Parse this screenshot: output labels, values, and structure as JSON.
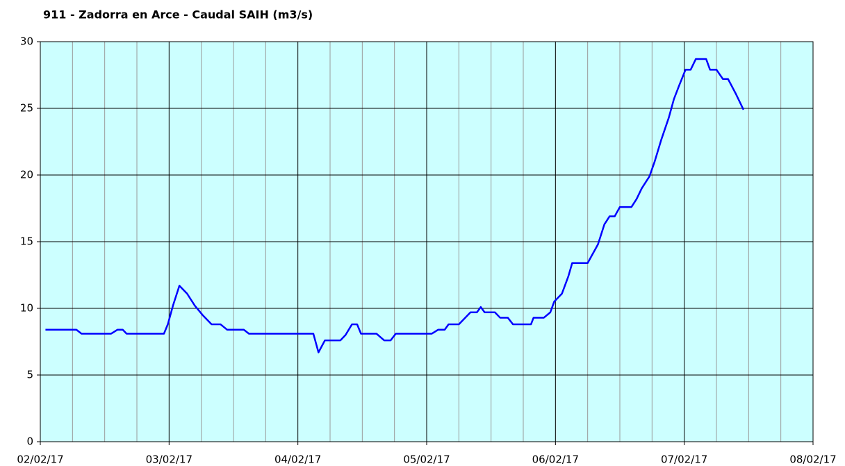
{
  "chart_data": {
    "type": "line",
    "title": "911 - Zadorra en Arce - Caudal SAIH (m3/s)",
    "xlim": [
      0,
      6
    ],
    "xticks": [
      {
        "value": 0,
        "label": "02/02/17"
      },
      {
        "value": 1,
        "label": "03/02/17"
      },
      {
        "value": 2,
        "label": "04/02/17"
      },
      {
        "value": 3,
        "label": "05/02/17"
      },
      {
        "value": 4,
        "label": "06/02/17"
      },
      {
        "value": 5,
        "label": "07/02/17"
      },
      {
        "value": 6,
        "label": "08/02/17"
      }
    ],
    "minor_divisions": 4,
    "ylim": [
      0,
      30
    ],
    "yticks": [
      0,
      5,
      10,
      15,
      20,
      25,
      30
    ],
    "grid": true,
    "background": "#ccffff",
    "series": [
      {
        "color": "#0000ff",
        "x": [
          0.04,
          0.28,
          0.32,
          0.55,
          0.6,
          0.64,
          0.67,
          0.96,
          0.99,
          1.03,
          1.08,
          1.14,
          1.2,
          1.26,
          1.33,
          1.4,
          1.45,
          1.58,
          1.62,
          2.12,
          2.16,
          2.21,
          2.33,
          2.37,
          2.42,
          2.46,
          2.49,
          2.61,
          2.67,
          2.72,
          2.76,
          3.04,
          3.09,
          3.14,
          3.17,
          3.25,
          3.34,
          3.39,
          3.42,
          3.45,
          3.53,
          3.57,
          3.63,
          3.67,
          3.81,
          3.83,
          3.91,
          3.96,
          3.99,
          4.05,
          4.1,
          4.13,
          4.25,
          4.33,
          4.38,
          4.42,
          4.46,
          4.5,
          4.59,
          4.63,
          4.67,
          4.73,
          4.77,
          4.82,
          4.88,
          4.92,
          4.96,
          5.01,
          5.05,
          5.09,
          5.17,
          5.2,
          5.25,
          5.3,
          5.34,
          5.4,
          5.46
        ],
        "values": [
          8.4,
          8.4,
          8.1,
          8.1,
          8.4,
          8.4,
          8.1,
          8.1,
          8.8,
          10.2,
          11.7,
          11.1,
          10.2,
          9.5,
          8.8,
          8.8,
          8.4,
          8.4,
          8.1,
          8.1,
          6.7,
          7.6,
          7.6,
          8.0,
          8.8,
          8.8,
          8.1,
          8.1,
          7.6,
          7.6,
          8.1,
          8.1,
          8.4,
          8.4,
          8.8,
          8.8,
          9.7,
          9.7,
          10.1,
          9.7,
          9.7,
          9.3,
          9.3,
          8.8,
          8.8,
          9.3,
          9.3,
          9.7,
          10.5,
          11.1,
          12.4,
          13.4,
          13.4,
          14.8,
          16.3,
          16.9,
          16.9,
          17.6,
          17.6,
          18.2,
          19.0,
          19.9,
          21.0,
          22.6,
          24.3,
          25.7,
          26.7,
          27.9,
          27.9,
          28.7,
          28.7,
          27.9,
          27.9,
          27.2,
          27.2,
          26.1,
          24.9
        ]
      }
    ]
  }
}
